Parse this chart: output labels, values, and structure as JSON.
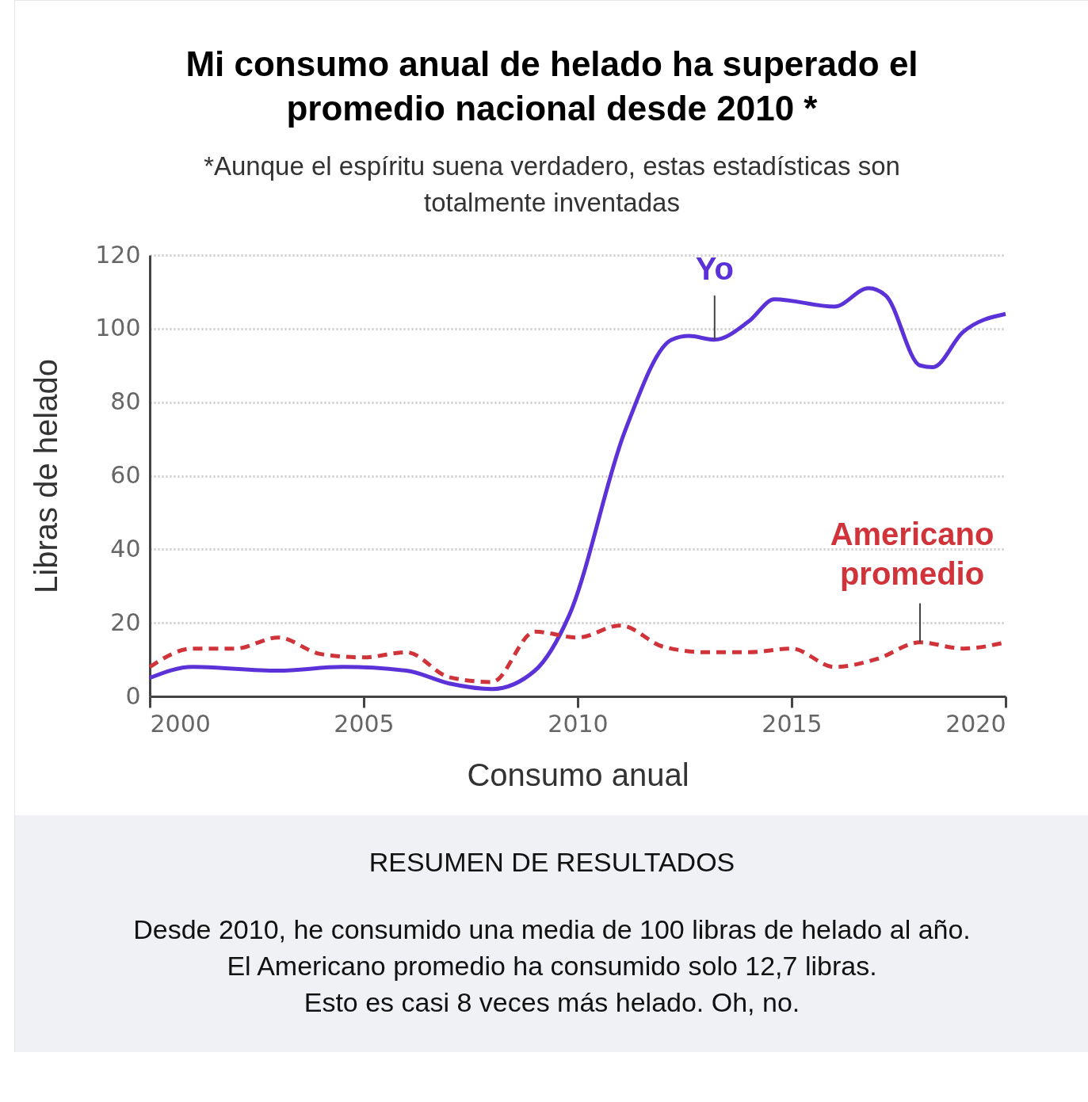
{
  "chart_data": {
    "type": "line",
    "title": "Mi consumo anual de helado ha superado el promedio nacional desde 2010 *",
    "subtitle": "*Aunque el espíritu suena verdadero, estas estadísticas son totalmente inventadas",
    "xlabel": "Consumo anual",
    "ylabel": "Libras de helado",
    "xlim": [
      2000,
      2020
    ],
    "xticks": [
      2000,
      2005,
      2010,
      2015,
      2020
    ],
    "ylim": [
      0,
      120
    ],
    "yticks": [
      0,
      20,
      40,
      60,
      80,
      100,
      120
    ],
    "grid": "y",
    "series": [
      {
        "name": "Yo",
        "color": "#5a32d8",
        "line_style": "solid",
        "x": [
          2000,
          2001,
          2003,
          2004.5,
          2006,
          2007,
          2008,
          2009,
          2009.8,
          2011.1,
          2012.2,
          2012.6,
          2013.2,
          2014,
          2014.6,
          2016,
          2016.8,
          2017.2,
          2018,
          2018.3,
          2019,
          2020
        ],
        "values": [
          5,
          8,
          7,
          8,
          7,
          3.5,
          2,
          7,
          22,
          72,
          97,
          98,
          97,
          102,
          108,
          106,
          111,
          109,
          90,
          89.5,
          99,
          104
        ]
      },
      {
        "name": "Americano promedio",
        "color": "#d0343a",
        "line_style": "dashed",
        "x": [
          2000,
          2001,
          2002,
          2003,
          2004,
          2005,
          2006,
          2007,
          2008,
          2009,
          2010,
          2011,
          2012,
          2013,
          2014,
          2015,
          2016,
          2017,
          2018,
          2019,
          2020
        ],
        "values": [
          8,
          13,
          13,
          16,
          11.5,
          10.6,
          12,
          5.2,
          3.9,
          17.6,
          16,
          19.3,
          13.5,
          12,
          12,
          13,
          8,
          10.2,
          14.7,
          13,
          14.7
        ]
      }
    ],
    "annotations": [
      "RESUMEN DE RESULTADOS",
      "Desde 2010, he consumido una media de 100 libras de helado al año.",
      "El Americano promedio ha consumido solo 12,7 libras.",
      "Esto es casi 8 veces más helado. Oh, no."
    ]
  }
}
